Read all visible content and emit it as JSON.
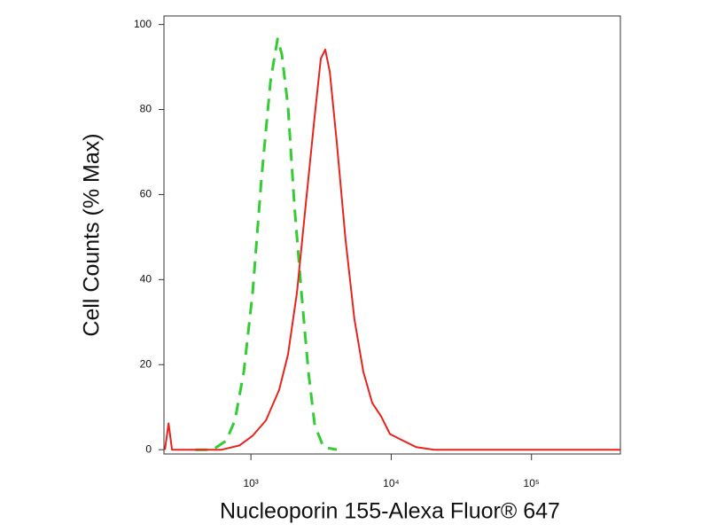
{
  "chart_data": {
    "type": "line",
    "x_label": "Nucleoporin 155-Alexa Fluor® 647",
    "y_label": "Cell Counts (% Max)",
    "xscale": "log",
    "xlim": [
      240,
      430000
    ],
    "ylim": [
      -1,
      102
    ],
    "xticks": [
      {
        "value": 1000,
        "label": "10³"
      },
      {
        "value": 10000,
        "label": "10⁴"
      },
      {
        "value": 100000,
        "label": "10⁵"
      }
    ],
    "yticks": [
      0,
      20,
      40,
      60,
      80,
      100
    ],
    "grid": false,
    "series": [
      {
        "color": "#33cc33",
        "linestyle": "dashed",
        "x": [
          401,
          535,
          666,
          769,
          890,
          1030,
          1190,
          1380,
          1550,
          1660,
          1840,
          2040,
          2290,
          2570,
          2850,
          3290,
          4090
        ],
        "values": [
          0,
          0,
          2.1,
          6.9,
          18.3,
          37,
          64,
          86.8,
          96.6,
          93,
          80.6,
          57.7,
          37,
          18.3,
          5.8,
          0.6,
          0
        ]
      },
      {
        "color": "#e8231c",
        "linestyle": "solid",
        "x": [
          244,
          259,
          274,
          619,
          828,
          1030,
          1280,
          1590,
          1840,
          2130,
          2460,
          2850,
          3150,
          3390,
          3650,
          4090,
          4730,
          5470,
          6330,
          7320,
          8460,
          9790,
          12200,
          15100,
          20200,
          428000
        ],
        "values": [
          0,
          6.2,
          0,
          0,
          1,
          3.3,
          6.9,
          14.1,
          22.4,
          37,
          57.7,
          78.5,
          92,
          94.1,
          88.9,
          72.3,
          49.4,
          30.7,
          18.3,
          11,
          7.9,
          3.7,
          2.1,
          0.6,
          0,
          0
        ]
      }
    ]
  }
}
